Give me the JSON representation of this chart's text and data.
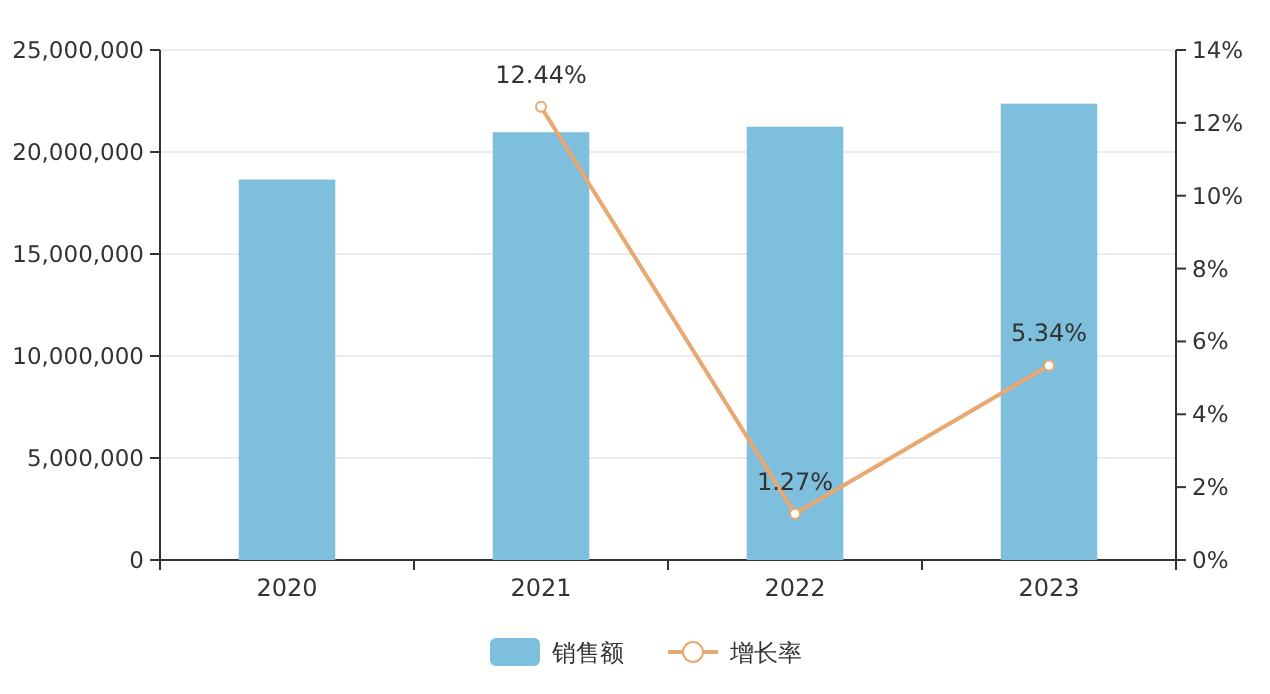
{
  "chart_data": {
    "type": "bar",
    "categories": [
      "2020",
      "2021",
      "2022",
      "2023"
    ],
    "series": [
      {
        "name": "销售额",
        "color": "#7dbfdc",
        "values": [
          18650000,
          20970000,
          21240000,
          22370000
        ]
      },
      {
        "name": "增长率",
        "type": "line",
        "axis": "y2",
        "color": "#e8a86f",
        "marker": "circle",
        "values": [
          null,
          12.44,
          1.27,
          5.34
        ],
        "value_labels": [
          null,
          "12.44%",
          "1.27%",
          "5.34%"
        ]
      }
    ],
    "ylim": [
      0,
      25000000
    ],
    "yticks": [
      {
        "value": 0,
        "label": "0"
      },
      {
        "value": 5000000,
        "label": "5,000,000"
      },
      {
        "value": 10000000,
        "label": "10,000,000"
      },
      {
        "value": 15000000,
        "label": "15,000,000"
      },
      {
        "value": 20000000,
        "label": "20,000,000"
      },
      {
        "value": 25000000,
        "label": "25,000,000"
      }
    ],
    "y2lim": [
      0,
      14
    ],
    "y2ticks": [
      {
        "value": 0,
        "label": "0%"
      },
      {
        "value": 2,
        "label": "2%"
      },
      {
        "value": 4,
        "label": "4%"
      },
      {
        "value": 6,
        "label": "6%"
      },
      {
        "value": 8,
        "label": "8%"
      },
      {
        "value": 10,
        "label": "10%"
      },
      {
        "value": 12,
        "label": "12%"
      },
      {
        "value": 14,
        "label": "14%"
      }
    ],
    "grid": "y",
    "legend": "bottom"
  }
}
